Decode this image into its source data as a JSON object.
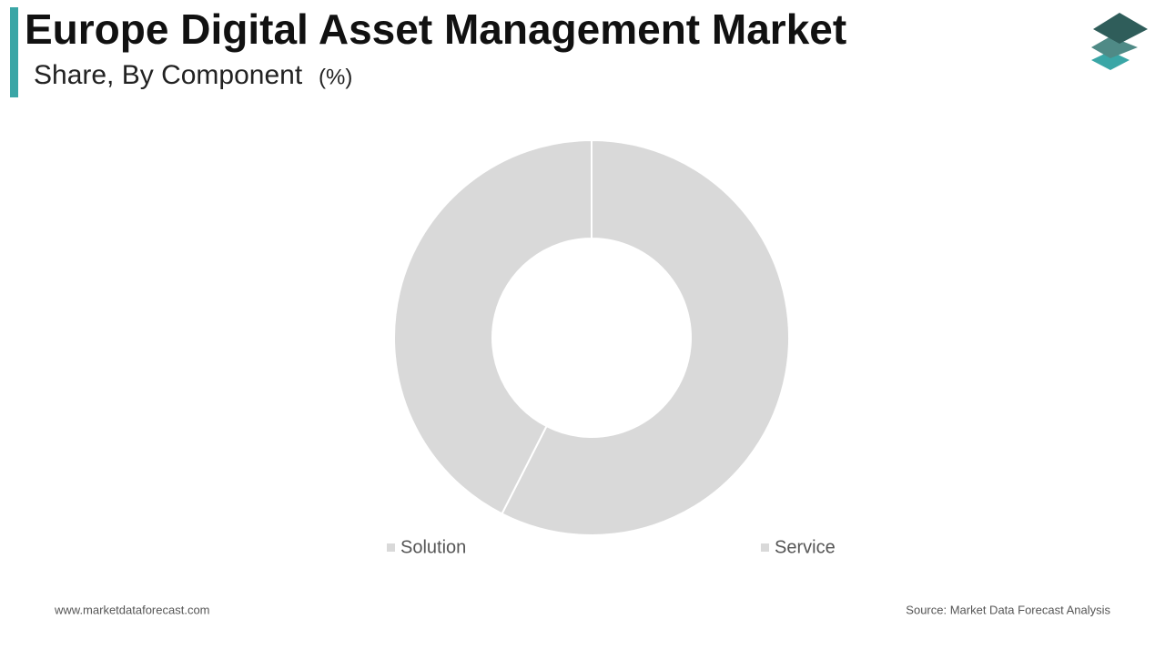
{
  "chart_data": {
    "type": "donut",
    "title": "Europe Digital Asset Management Market",
    "subtitle": "Share, By Component",
    "unit": "(%)",
    "categories": [
      "Solution",
      "Service"
    ],
    "values": [
      57.5,
      42.5
    ],
    "colors": [
      "#d9d9d9",
      "#d9d9d9"
    ],
    "footer_left": "www.marketdataforecast.com",
    "footer_right": "Source: Market Data Forecast Analysis"
  }
}
